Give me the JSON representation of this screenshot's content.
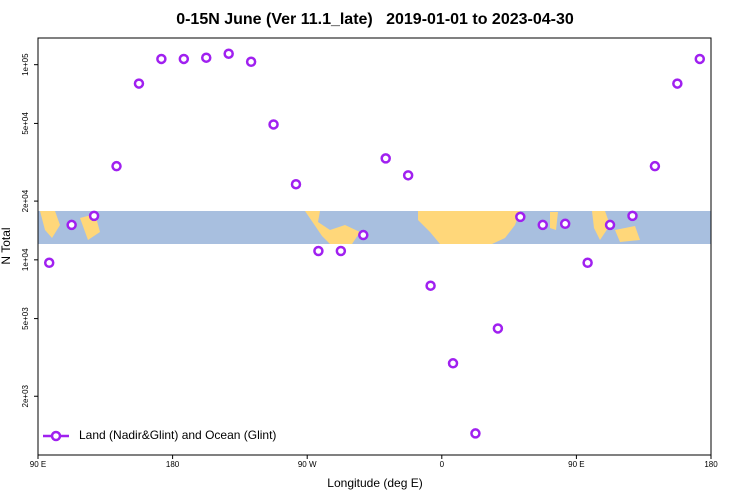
{
  "chart_data": {
    "type": "scatter",
    "title": "0-15N June (Ver 11.1_late)   2019-01-01 to 2023-04-30",
    "xlabel": "Longitude (deg E)",
    "ylabel": "N Total",
    "x": [
      97.5,
      112.5,
      127.5,
      142.5,
      157.5,
      172.5,
      187.5,
      202.5,
      217.5,
      232.5,
      247.5,
      262.5,
      277.5,
      292.5,
      307.5,
      322.5,
      337.5,
      352.5,
      367.5,
      382.5,
      397.5,
      412.5,
      427.5,
      442.5,
      457.5,
      472.5,
      487.5,
      502.5,
      517.5,
      532.5
    ],
    "series": [
      {
        "name": "Land (Nadir&Glint) and Ocean (Glint)",
        "color": "#a020f0",
        "values": [
          9660,
          15100,
          16800,
          30200,
          80000,
          107000,
          107000,
          108600,
          113800,
          103500,
          49400,
          24400,
          11100,
          11100,
          13400,
          33100,
          27100,
          7370,
          2950,
          1290,
          4450,
          16600,
          15100,
          15300,
          9660,
          15100,
          16800,
          30200,
          80000,
          107000
        ]
      }
    ],
    "xlim": [
      90,
      540
    ],
    "xticks": [
      {
        "value": 90,
        "label": "90 E"
      },
      {
        "value": 180,
        "label": "180"
      },
      {
        "value": 270,
        "label": "90 W"
      },
      {
        "value": 360,
        "label": "0"
      },
      {
        "value": 450,
        "label": "90 E"
      },
      {
        "value": 540,
        "label": "180"
      }
    ],
    "ylim": [
      1000,
      137000
    ],
    "yticks": [
      {
        "value": 2000,
        "label": "2e+03"
      },
      {
        "value": 5000,
        "label": "5e+03"
      },
      {
        "value": 10000,
        "label": "1e+04"
      },
      {
        "value": 20000,
        "label": "2e+04"
      },
      {
        "value": 50000,
        "label": "5e+04"
      },
      {
        "value": 100000,
        "label": "1e+05"
      }
    ],
    "log_y": true,
    "legend": "bottomleft"
  }
}
